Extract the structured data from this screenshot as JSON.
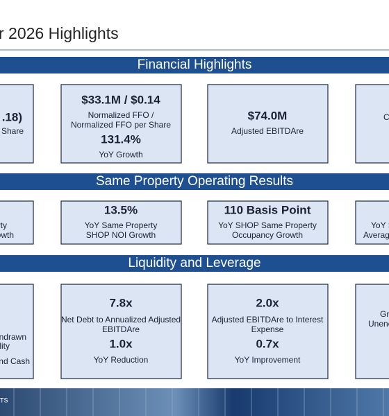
{
  "header": {
    "title": "r 2026 Highlights"
  },
  "sections": [
    {
      "heading": "Financial Highlights",
      "boxes": [
        {
          "lines": [
            ".18)",
            "r Share"
          ]
        },
        {
          "lines": [
            "$33.1M / $0.14",
            "Normalized FFO /",
            "Normalized FFO per Share",
            "131.4%",
            "YoY Growth"
          ]
        },
        {
          "lines": [
            "$74.0M",
            "Adjusted EBITDAre"
          ]
        },
        {
          "lines": [
            "C"
          ]
        }
      ]
    },
    {
      "heading": "Same Property Operating Results",
      "boxes": [
        {
          "lines": [
            "rty",
            "owth"
          ]
        },
        {
          "lines": [
            "13.5%",
            "YoY Same Property",
            "SHOP NOI Growth"
          ]
        },
        {
          "lines": [
            "110 Basis Point",
            "YoY SHOP Same Property",
            "Occupancy Growth"
          ]
        },
        {
          "lines": [
            "YoY S",
            "Averag"
          ]
        }
      ]
    },
    {
      "heading": "Liquidity and Leverage",
      "boxes": [
        {
          "lines": [
            "Undrawn",
            "ility",
            "and Cash"
          ]
        },
        {
          "lines": [
            "7.8x",
            "Net Debt to Annualized Adjusted",
            "EBITDAre",
            "1.0x",
            "YoY Reduction"
          ]
        },
        {
          "lines": [
            "2.0x",
            "Adjusted EBITDAre to Interest",
            "Expense",
            "0.7x",
            "YoY Improvement"
          ]
        },
        {
          "lines": [
            "Gr",
            "Unenc"
          ]
        }
      ]
    }
  ],
  "footer": {
    "text": "TS"
  }
}
